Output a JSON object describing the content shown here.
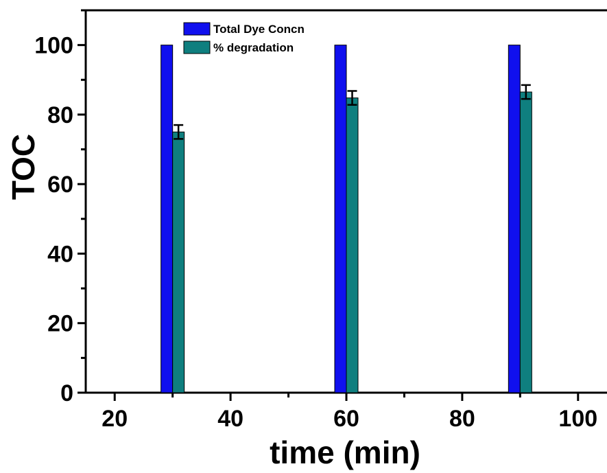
{
  "chart_data": {
    "type": "bar",
    "title": "",
    "xlabel": "time (min)",
    "ylabel": "TOC",
    "xlim": [
      15,
      105
    ],
    "ylim": [
      0,
      110
    ],
    "x_ticks": [
      20,
      40,
      60,
      80,
      100
    ],
    "y_ticks": [
      0,
      20,
      40,
      60,
      80,
      100
    ],
    "grid": false,
    "legend_position": "top-left",
    "x": [
      30,
      60,
      90
    ],
    "series": [
      {
        "name": "Total Dye Concn",
        "color": "#1010ee",
        "values": [
          100,
          100,
          100
        ],
        "errors": [
          0,
          0,
          0
        ]
      },
      {
        "name": "% degradation",
        "color": "#0f7f7f",
        "values": [
          75,
          84.8,
          86.5
        ],
        "errors": [
          2,
          2,
          2
        ]
      }
    ]
  }
}
